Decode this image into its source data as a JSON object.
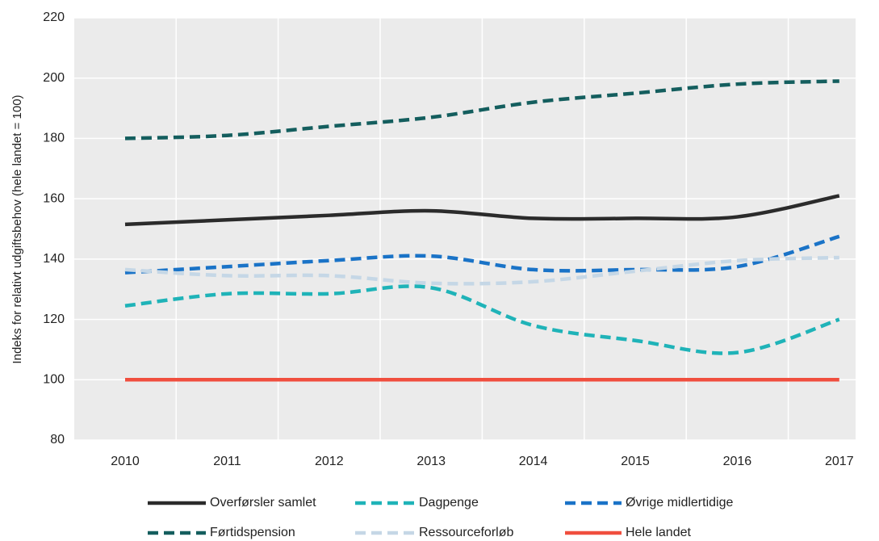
{
  "chart_data": {
    "type": "line",
    "y_label": "Indeks for relativt udgiftsbehov (hele landet = 100)",
    "categories": [
      "2010",
      "2011",
      "2012",
      "2013",
      "2014",
      "2015",
      "2016",
      "2017"
    ],
    "series": [
      {
        "name": "Overførsler samlet",
        "color": "#2b2b2b",
        "dash": false,
        "values": [
          151.5,
          153,
          154.5,
          156,
          153.5,
          153.5,
          154,
          161
        ]
      },
      {
        "name": "Dagpenge",
        "color": "#1fb3b8",
        "dash": true,
        "values": [
          124.5,
          128.5,
          128.5,
          130.5,
          118,
          113,
          109,
          120
        ]
      },
      {
        "name": "Øvrige midlertidige",
        "color": "#1a73c7",
        "dash": true,
        "values": [
          135.5,
          137.5,
          139.5,
          141,
          136.5,
          136.5,
          137.5,
          147.5
        ]
      },
      {
        "name": "Førtidspension",
        "color": "#145e5e",
        "dash": true,
        "values": [
          180,
          181,
          184,
          187,
          192,
          195,
          198,
          199
        ]
      },
      {
        "name": "Ressourceforløb",
        "color": "#c5d7e6",
        "dash": true,
        "values": [
          136.5,
          134.5,
          134.5,
          132,
          132.5,
          136,
          139.5,
          140.5
        ]
      },
      {
        "name": "Hele landet",
        "color": "#f04e3e",
        "dash": false,
        "values": [
          100,
          100,
          100,
          100,
          100,
          100,
          100,
          100
        ]
      }
    ],
    "ylim": [
      80,
      220
    ],
    "yticks": [
      80,
      100,
      120,
      140,
      160,
      180,
      200,
      220
    ],
    "grid": true
  }
}
